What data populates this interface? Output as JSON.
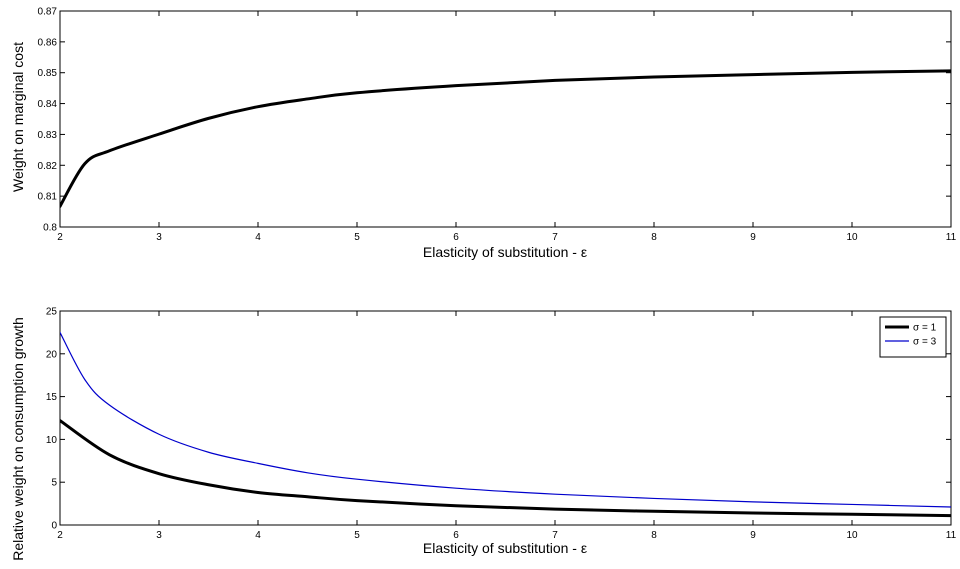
{
  "chart_data": [
    {
      "type": "line",
      "title": "",
      "xlabel": "Elasticity of substitution - ε",
      "ylabel": "Weight on marginal cost",
      "xlim": [
        2,
        11
      ],
      "ylim": [
        0.8,
        0.87
      ],
      "xticks": [
        2,
        3,
        4,
        5,
        6,
        7,
        8,
        9,
        10,
        11
      ],
      "yticks": [
        0.8,
        0.81,
        0.82,
        0.83,
        0.84,
        0.85,
        0.86,
        0.87
      ],
      "xtick_labels": [
        "2",
        "3",
        "4",
        "5",
        "6",
        "7",
        "8",
        "9",
        "10",
        "11"
      ],
      "ytick_labels": [
        "0.8",
        "0.81",
        "0.82",
        "0.83",
        "0.84",
        "0.85",
        "0.86",
        "0.87"
      ],
      "grid": false,
      "legend": null,
      "series": [
        {
          "color": "#000000",
          "line_width": "thick",
          "x": [
            2,
            2.25,
            2.5,
            3,
            3.5,
            4,
            4.5,
            5,
            6,
            7,
            8,
            9,
            10,
            11
          ],
          "y": [
            0.8067,
            0.8205,
            0.8247,
            0.8301,
            0.8352,
            0.839,
            0.8415,
            0.8435,
            0.8458,
            0.8475,
            0.8486,
            0.8494,
            0.8501,
            0.8506
          ]
        }
      ]
    },
    {
      "type": "line",
      "title": "",
      "xlabel": "Elasticity of substitution - ε",
      "ylabel": "Relative weight on consumption growth",
      "xlim": [
        2,
        11
      ],
      "ylim": [
        0,
        25
      ],
      "xticks": [
        2,
        3,
        4,
        5,
        6,
        7,
        8,
        9,
        10,
        11
      ],
      "yticks": [
        0,
        5,
        10,
        15,
        20,
        25
      ],
      "xtick_labels": [
        "2",
        "3",
        "4",
        "5",
        "6",
        "7",
        "8",
        "9",
        "10",
        "11"
      ],
      "ytick_labels": [
        "0",
        "5",
        "10",
        "15",
        "20",
        "25"
      ],
      "grid": false,
      "legend": {
        "position": "top-right",
        "entries": [
          "σ = 1",
          "σ = 3"
        ]
      },
      "series": [
        {
          "name": "σ = 1",
          "color": "#000000",
          "line_width": "thick",
          "x": [
            2,
            2.5,
            3,
            3.5,
            4,
            4.5,
            5,
            6,
            7,
            8,
            9,
            10,
            11
          ],
          "y": [
            12.2,
            8.2,
            6.0,
            4.7,
            3.8,
            3.3,
            2.85,
            2.25,
            1.85,
            1.6,
            1.4,
            1.25,
            1.1
          ]
        },
        {
          "name": "σ = 3",
          "color": "#0000cc",
          "line_width": "thin",
          "x": [
            2,
            2.25,
            2.5,
            3,
            3.5,
            4,
            4.5,
            5,
            6,
            7,
            8,
            9,
            10,
            11
          ],
          "y": [
            22.5,
            17.0,
            14.0,
            10.6,
            8.5,
            7.2,
            6.1,
            5.35,
            4.3,
            3.6,
            3.1,
            2.7,
            2.4,
            2.1
          ]
        }
      ]
    }
  ]
}
